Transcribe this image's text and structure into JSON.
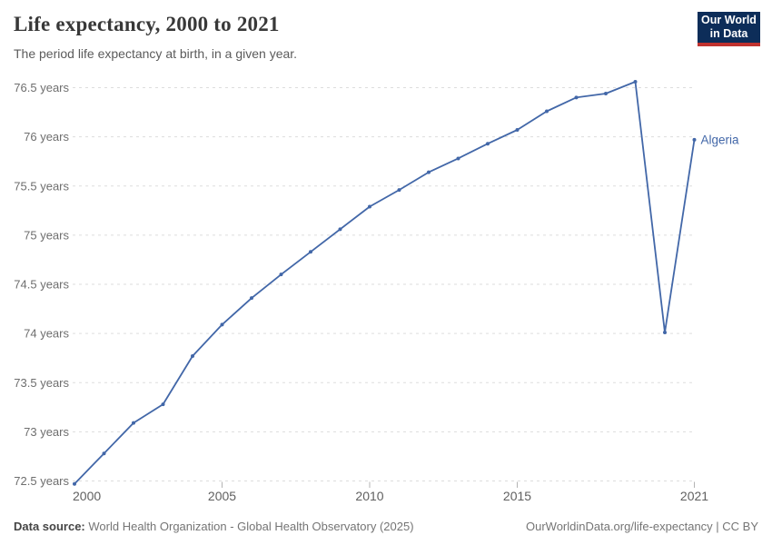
{
  "header": {
    "title": "Life expectancy, 2000 to 2021",
    "subtitle": "The period life expectancy at birth, in a given year."
  },
  "logo": {
    "line1": "Our World",
    "line2": "in Data",
    "bg_color": "#0d2d59",
    "accent_color": "#c0322f"
  },
  "chart_data": {
    "type": "line",
    "title": "Life expectancy, 2000 to 2021",
    "subtitle": "The period life expectancy at birth, in a given year.",
    "xlabel": "",
    "ylabel": "",
    "x": [
      2000,
      2001,
      2002,
      2003,
      2004,
      2005,
      2006,
      2007,
      2008,
      2009,
      2010,
      2011,
      2012,
      2013,
      2014,
      2015,
      2016,
      2017,
      2018,
      2019,
      2020,
      2021
    ],
    "series": [
      {
        "name": "Algeria",
        "color": "#4267a8",
        "values": [
          72.47,
          72.78,
          73.09,
          73.28,
          73.77,
          74.09,
          74.36,
          74.6,
          74.83,
          75.06,
          75.29,
          75.46,
          75.64,
          75.78,
          75.93,
          76.07,
          76.26,
          76.4,
          76.44,
          76.56,
          74.01,
          75.97
        ]
      }
    ],
    "x_ticks": [
      2000,
      2005,
      2010,
      2015,
      2021
    ],
    "y_ticks": [
      72.5,
      73,
      73.5,
      74,
      74.5,
      75,
      75.5,
      76,
      76.5
    ],
    "y_tick_suffix": " years",
    "xlim": [
      2000,
      2021
    ],
    "ylim": [
      72.5,
      76.5
    ],
    "grid": "horizontal-dashed",
    "legend": "line-end-label"
  },
  "footer": {
    "source_label": "Data source:",
    "source_text": "World Health Organization - Global Health Observatory (2025)",
    "right_text": "OurWorldinData.org/life-expectancy | CC BY"
  }
}
